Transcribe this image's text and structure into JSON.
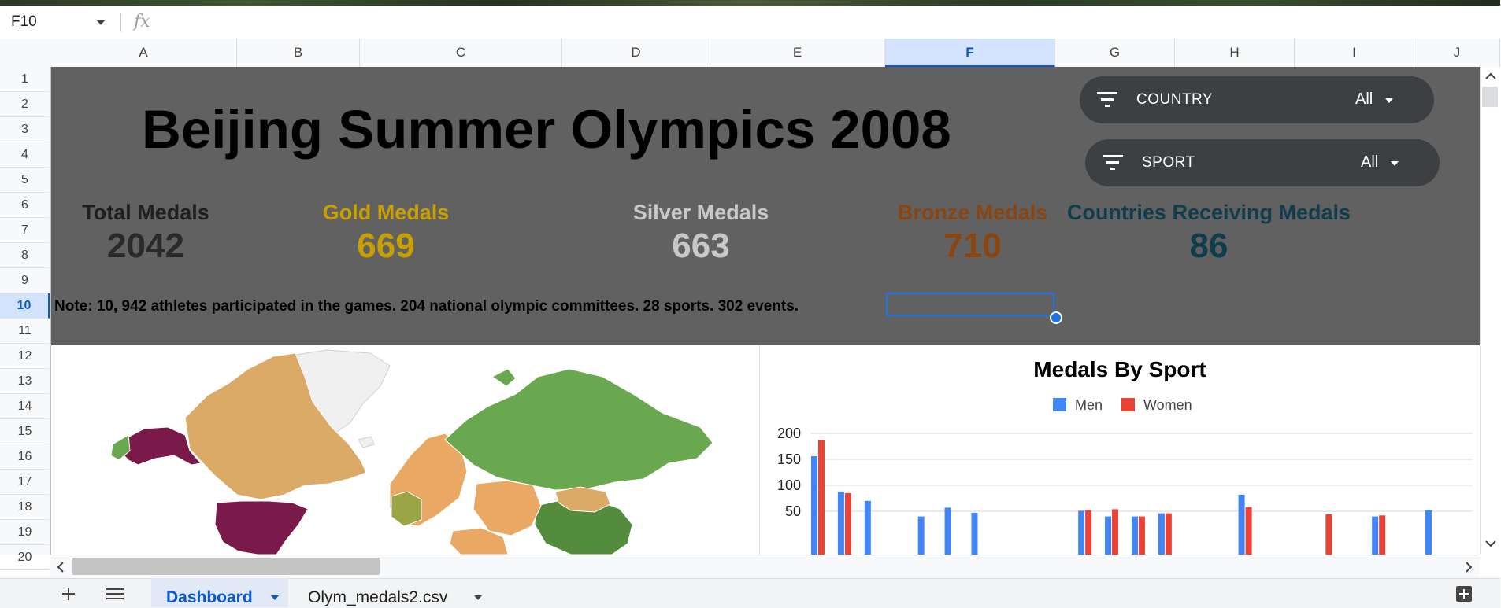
{
  "formula_bar": {
    "name_box": "F10",
    "fx_label": "fx"
  },
  "columns": [
    "A",
    "B",
    "C",
    "D",
    "E",
    "F",
    "G",
    "H",
    "I",
    "J"
  ],
  "selected_column": "F",
  "rows": [
    "1",
    "2",
    "3",
    "4",
    "5",
    "6",
    "7",
    "8",
    "9",
    "10",
    "11",
    "12",
    "13",
    "14",
    "15",
    "16",
    "17",
    "18",
    "19",
    "20"
  ],
  "selected_row": "10",
  "dashboard": {
    "title": "Beijing Summer Olympics 2008",
    "filters": [
      {
        "label": "COUNTRY",
        "value": "All"
      },
      {
        "label": "SPORT",
        "value": "All"
      }
    ],
    "stats": [
      {
        "label": "Total Medals",
        "value": "2042",
        "color": "#1f1f1f"
      },
      {
        "label": "Gold Medals",
        "value": "669",
        "color": "#c9a000"
      },
      {
        "label": "Silver Medals",
        "value": "663",
        "color": "#c0c0c0"
      },
      {
        "label": "Bronze Medals",
        "value": "710",
        "color": "#8b4511"
      },
      {
        "label": "Countries Receiving Medals",
        "value": "86",
        "color": "#0f3d4c"
      }
    ],
    "note": "Note:  10, 942 athletes participated in the games.  204 national olympic committees. 28 sports.  302 events."
  },
  "map": {
    "type": "geo-choropleth",
    "colors": [
      "#7a1a4a",
      "#dbaa66",
      "#6aa84f",
      "#e9a964",
      "#f0f0f0"
    ]
  },
  "chart_data": {
    "type": "bar",
    "title": "Medals By Sport",
    "legend_position": "top",
    "series": [
      {
        "name": "Men",
        "color": "#4285f4",
        "values": [
          156,
          88,
          70,
          0,
          40,
          57,
          47,
          0,
          0,
          0,
          51,
          40,
          40,
          46,
          0,
          0,
          82,
          0,
          0,
          0,
          0,
          40,
          0,
          52
        ]
      },
      {
        "name": "Women",
        "color": "#ea4335",
        "values": [
          187,
          85,
          0,
          0,
          0,
          0,
          0,
          0,
          0,
          0,
          52,
          54,
          40,
          46,
          0,
          0,
          58,
          0,
          0,
          44,
          0,
          42,
          0,
          0
        ]
      }
    ],
    "y_ticks": [
      200,
      150,
      100,
      50
    ],
    "ylim": [
      0,
      200
    ],
    "grid": true
  },
  "sheet_tabs": [
    {
      "label": "Dashboard",
      "active": true
    },
    {
      "label": "Olym_medals2.csv",
      "active": false
    }
  ]
}
